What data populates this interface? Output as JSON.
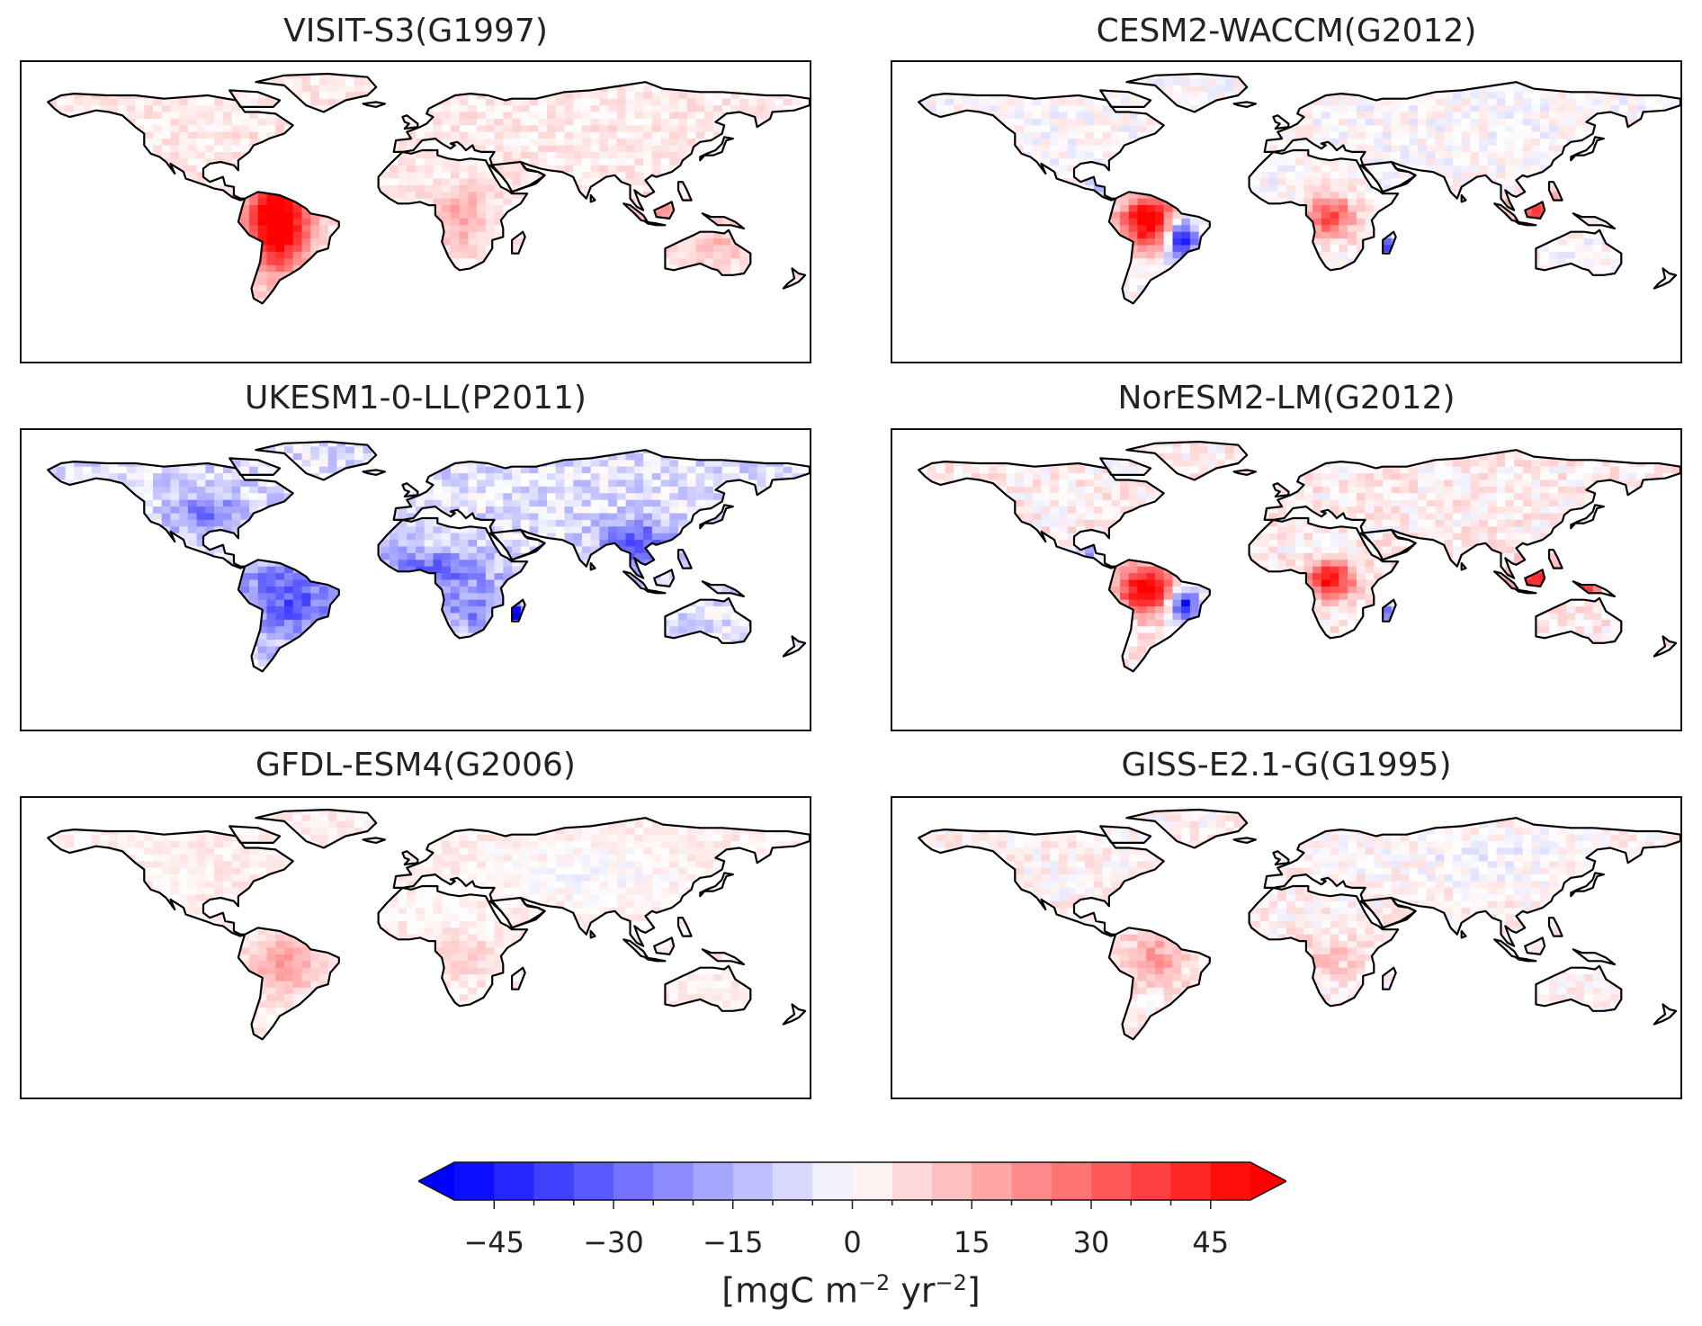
{
  "figure": {
    "panels": [
      {
        "title": "VISIT-S3(G1997)",
        "pattern": "visit"
      },
      {
        "title": "CESM2-WACCM(G2012)",
        "pattern": "cesm"
      },
      {
        "title": "UKESM1-0-LL(P2011)",
        "pattern": "ukesm"
      },
      {
        "title": "NorESM2-LM(G2012)",
        "pattern": "noresm"
      },
      {
        "title": "GFDL-ESM4(G2006)",
        "pattern": "gfdl"
      },
      {
        "title": "GISS-E2.1-G(G1995)",
        "pattern": "giss"
      }
    ]
  },
  "colorbar": {
    "min": -50,
    "max": 50,
    "step": 5,
    "extend": "both",
    "colormap": "bwr",
    "ticks": [
      -45,
      -30,
      -15,
      0,
      15,
      30,
      45
    ],
    "tick_labels": [
      "−45",
      "−30",
      "−15",
      "0",
      "15",
      "30",
      "45"
    ],
    "label_prefix": "[mgC m",
    "label_exp1": "−2",
    "label_mid": " yr",
    "label_exp2": "−2",
    "label_suffix": "]"
  },
  "colors": {
    "negative_end": "#0000ff",
    "positive_end": "#ff0000",
    "neutral": "#ffffff",
    "coastline": "#000000"
  }
}
